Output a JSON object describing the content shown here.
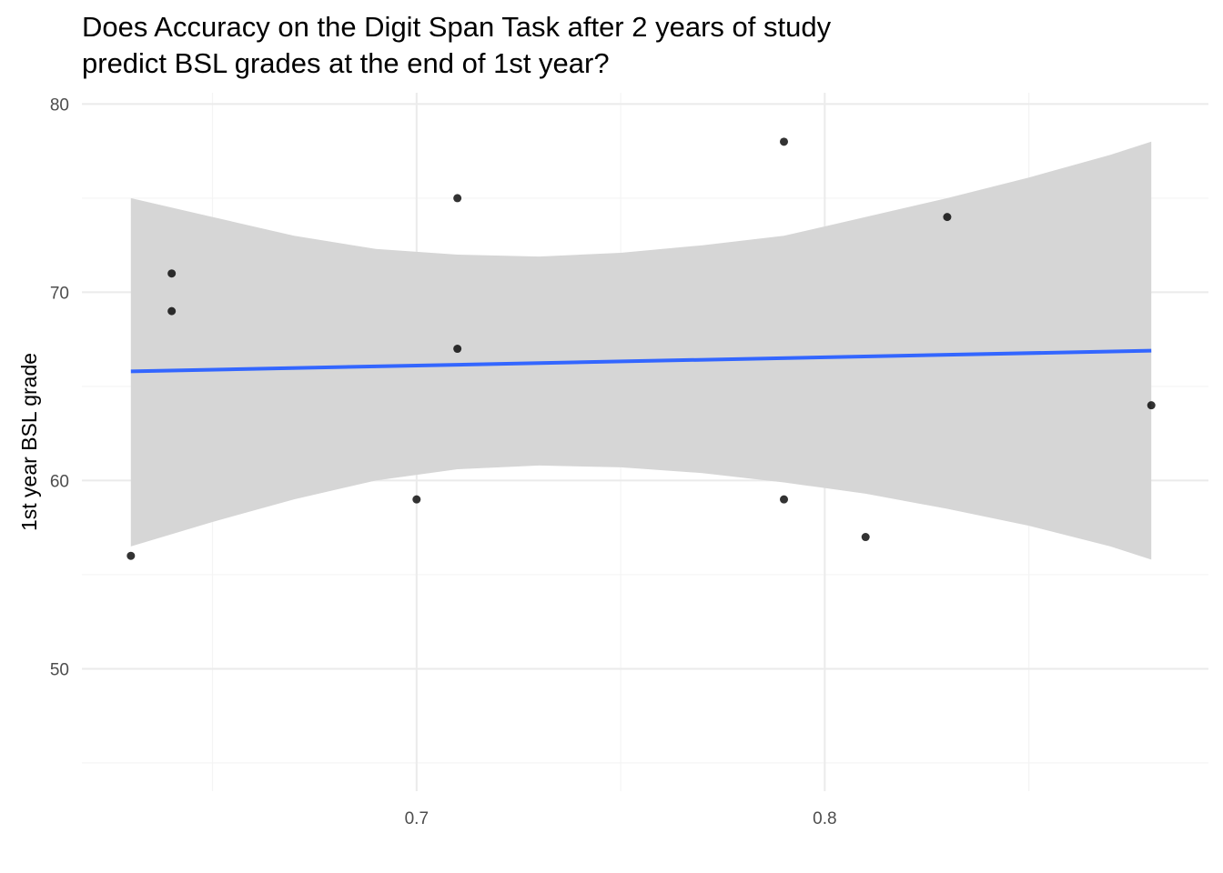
{
  "chart_data": {
    "type": "scatter",
    "title": "Does Accuracy on the Digit Span Task after 2 years of study predict BSL grades at the end of 1st year?",
    "title_lines": [
      "Does Accuracy on the Digit Span Task after 2 years of study",
      "predict BSL grades at the end of 1st year?"
    ],
    "xlabel": "",
    "ylabel": "1st year BSL grade",
    "xlim": [
      0.618,
      0.894
    ],
    "ylim": [
      43.5,
      80.6
    ],
    "x_ticks": [
      0.7,
      0.8
    ],
    "x_tick_labels": [
      "0.7",
      "0.8"
    ],
    "x_minor_ticks": [
      0.65,
      0.75,
      0.85
    ],
    "y_ticks": [
      50,
      60,
      70,
      80
    ],
    "y_tick_labels": [
      "50",
      "60",
      "70",
      "80"
    ],
    "y_minor_ticks": [
      45,
      55,
      65,
      75
    ],
    "grid": true,
    "legend": "none",
    "points": [
      {
        "x": 0.63,
        "y": 56
      },
      {
        "x": 0.64,
        "y": 71
      },
      {
        "x": 0.64,
        "y": 69
      },
      {
        "x": 0.7,
        "y": 59
      },
      {
        "x": 0.71,
        "y": 75
      },
      {
        "x": 0.71,
        "y": 67
      },
      {
        "x": 0.79,
        "y": 78
      },
      {
        "x": 0.79,
        "y": 59
      },
      {
        "x": 0.81,
        "y": 57
      },
      {
        "x": 0.83,
        "y": 74
      },
      {
        "x": 0.88,
        "y": 64
      }
    ],
    "fit_line": {
      "method": "lm",
      "x": [
        0.63,
        0.88
      ],
      "y": [
        65.8,
        66.9
      ]
    },
    "confidence_band": {
      "x": [
        0.63,
        0.65,
        0.67,
        0.69,
        0.71,
        0.73,
        0.75,
        0.77,
        0.79,
        0.81,
        0.83,
        0.85,
        0.87,
        0.88
      ],
      "lower": [
        56.5,
        57.8,
        59.0,
        60.0,
        60.6,
        60.8,
        60.7,
        60.4,
        59.9,
        59.3,
        58.5,
        57.6,
        56.5,
        55.8
      ],
      "upper": [
        75.0,
        74.0,
        73.0,
        72.3,
        72.0,
        71.9,
        72.1,
        72.5,
        73.0,
        74.0,
        75.0,
        76.1,
        77.3,
        78.0
      ]
    },
    "colors": {
      "background": "#ffffff",
      "grid_major": "#ebebeb",
      "grid_minor": "#f4f4f4",
      "band": "#d6d6d6",
      "fit_line": "#3366ff",
      "points": "#000000"
    }
  }
}
